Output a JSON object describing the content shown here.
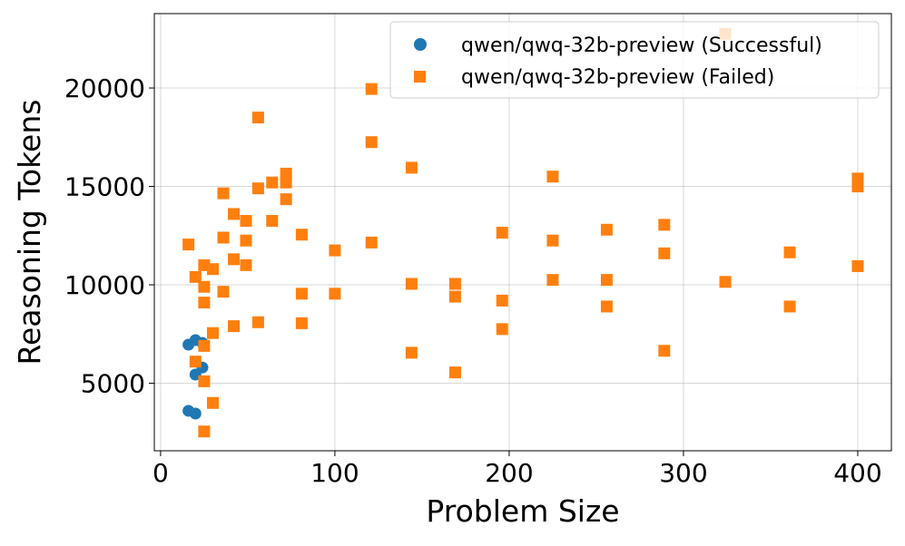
{
  "chart_data": {
    "type": "scatter",
    "title": "",
    "xlabel": "Problem Size",
    "ylabel": "Reasoning Tokens",
    "xlim": [
      -3.6,
      419.3
    ],
    "ylim": [
      1570,
      23780
    ],
    "xticks": [
      0,
      100,
      200,
      300,
      400
    ],
    "yticks": [
      5000,
      10000,
      15000,
      20000
    ],
    "xtick_labels": [
      "0",
      "100",
      "200",
      "300",
      "400"
    ],
    "ytick_labels": [
      "5000",
      "10000",
      "15000",
      "20000"
    ],
    "grid": true,
    "legend_position": "top-right",
    "series": [
      {
        "name": "qwen/qwq-32b-preview (Successful)",
        "marker": "circle",
        "color": "#1f77b4",
        "points": [
          [
            16,
            6960
          ],
          [
            20,
            7190
          ],
          [
            24,
            7050
          ],
          [
            24,
            5800
          ],
          [
            20,
            5440
          ],
          [
            16,
            3600
          ],
          [
            20,
            3460
          ]
        ]
      },
      {
        "name": "qwen/qwq-32b-preview (Failed)",
        "marker": "square",
        "color": "#ff7f0e",
        "points": [
          [
            16,
            12050
          ],
          [
            20,
            10400
          ],
          [
            20,
            6100
          ],
          [
            25,
            11000
          ],
          [
            25,
            9900
          ],
          [
            25,
            9100
          ],
          [
            25,
            6900
          ],
          [
            25,
            5100
          ],
          [
            25,
            2550
          ],
          [
            30,
            10800
          ],
          [
            30,
            7550
          ],
          [
            30,
            4000
          ],
          [
            36,
            14650
          ],
          [
            36,
            12400
          ],
          [
            36,
            9650
          ],
          [
            42,
            13600
          ],
          [
            42,
            11300
          ],
          [
            42,
            7900
          ],
          [
            49,
            13250
          ],
          [
            49,
            12250
          ],
          [
            49,
            11000
          ],
          [
            56,
            18500
          ],
          [
            56,
            14900
          ],
          [
            56,
            8100
          ],
          [
            64,
            15200
          ],
          [
            64,
            13250
          ],
          [
            72,
            15650
          ],
          [
            72,
            15200
          ],
          [
            72,
            14350
          ],
          [
            81,
            12550
          ],
          [
            81,
            9550
          ],
          [
            81,
            8050
          ],
          [
            100,
            11750
          ],
          [
            100,
            9550
          ],
          [
            121,
            19950
          ],
          [
            121,
            17250
          ],
          [
            121,
            12150
          ],
          [
            144,
            15950
          ],
          [
            144,
            10050
          ],
          [
            144,
            6550
          ],
          [
            169,
            10050
          ],
          [
            169,
            9400
          ],
          [
            169,
            5550
          ],
          [
            196,
            12650
          ],
          [
            196,
            9200
          ],
          [
            196,
            7750
          ],
          [
            225,
            15500
          ],
          [
            225,
            12250
          ],
          [
            225,
            10250
          ],
          [
            256,
            12800
          ],
          [
            256,
            10250
          ],
          [
            256,
            8900
          ],
          [
            289,
            13050
          ],
          [
            289,
            11600
          ],
          [
            289,
            6650
          ],
          [
            324,
            22750
          ],
          [
            324,
            10150
          ],
          [
            361,
            11650
          ],
          [
            361,
            8900
          ],
          [
            400,
            15400
          ],
          [
            400,
            15000
          ],
          [
            400,
            10950
          ]
        ]
      }
    ]
  }
}
